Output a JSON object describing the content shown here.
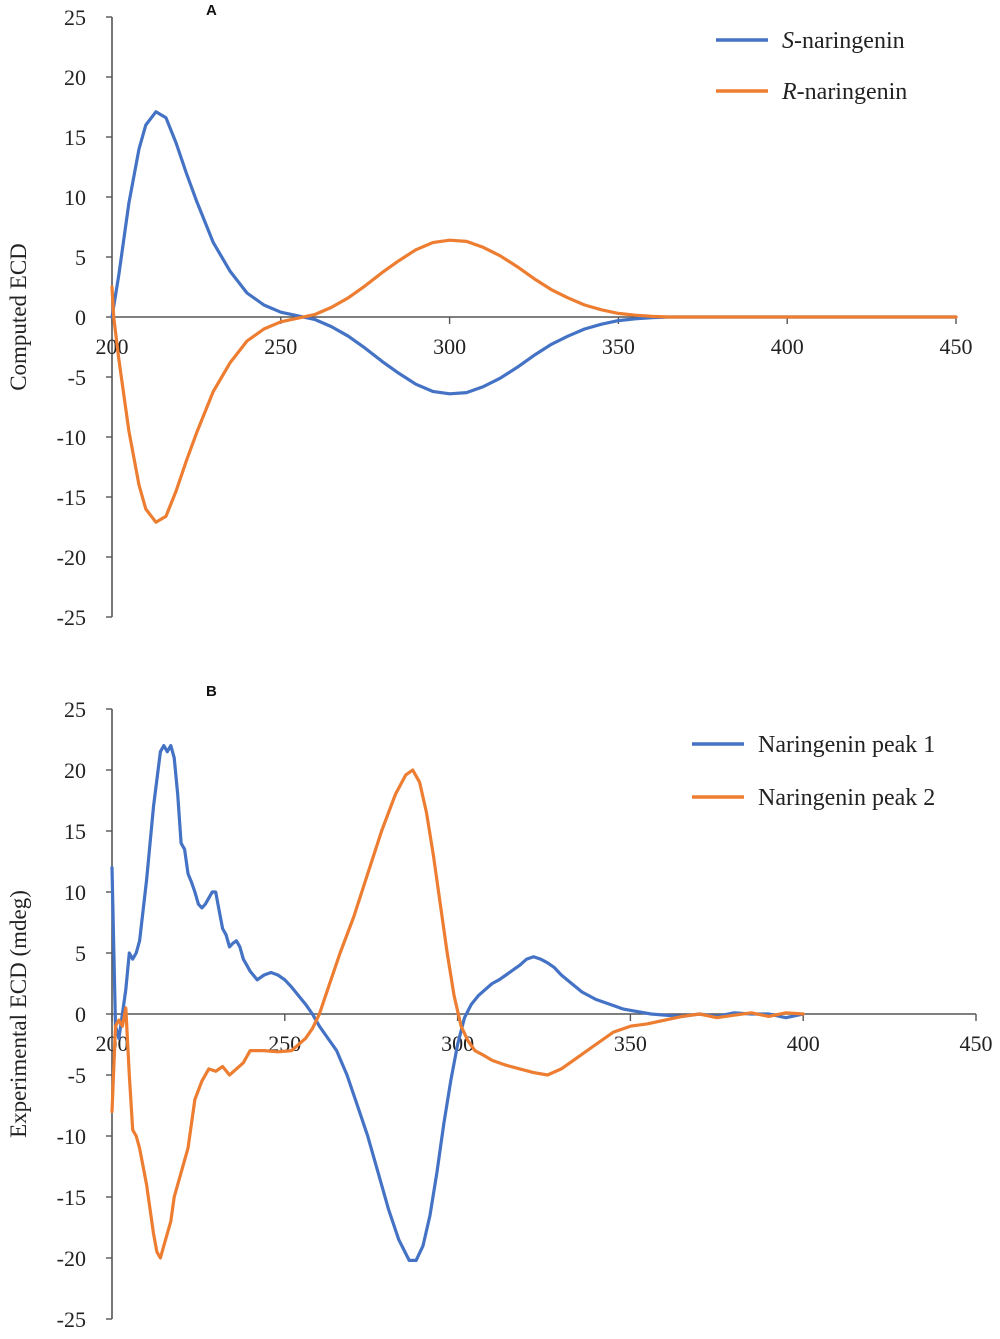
{
  "colors": {
    "blue": "#4472c4",
    "orange": "#ed7d31",
    "axis": "#555555",
    "text": "#222222"
  },
  "chart_data": [
    {
      "type": "line",
      "panel": "A",
      "title": "",
      "xlabel": "",
      "ylabel": "Computed ECD",
      "xlim": [
        200,
        450
      ],
      "ylim": [
        -25,
        25
      ],
      "xticks": [
        200,
        250,
        300,
        350,
        400,
        450
      ],
      "yticks": [
        -25,
        -20,
        -15,
        -10,
        -5,
        0,
        5,
        10,
        15,
        20,
        25
      ],
      "legend_position": "top-right",
      "series": [
        {
          "name": "S-naringenin",
          "name_italic": "S",
          "name_rest": "-naringenin",
          "color": "#4472c4",
          "x": [
            200,
            202,
            205,
            208,
            210,
            213,
            216,
            219,
            222,
            225,
            230,
            235,
            240,
            245,
            250,
            255,
            260,
            265,
            270,
            275,
            280,
            285,
            290,
            295,
            300,
            305,
            310,
            315,
            320,
            325,
            330,
            335,
            340,
            345,
            350,
            355,
            360,
            365,
            370,
            380,
            400,
            420,
            450
          ],
          "y": [
            0,
            3.5,
            9.5,
            14,
            16,
            17.1,
            16.6,
            14.5,
            12,
            9.7,
            6.2,
            3.8,
            2.0,
            1.0,
            0.4,
            0.1,
            -0.2,
            -0.8,
            -1.6,
            -2.6,
            -3.7,
            -4.7,
            -5.6,
            -6.2,
            -6.4,
            -6.3,
            -5.8,
            -5.1,
            -4.2,
            -3.2,
            -2.3,
            -1.6,
            -1.0,
            -0.6,
            -0.3,
            -0.15,
            -0.05,
            0,
            0,
            0,
            0,
            0,
            0
          ]
        },
        {
          "name": "R-naringenin",
          "name_italic": "R",
          "name_rest": "-naringenin",
          "color": "#ed7d31",
          "x": [
            200,
            200.5,
            202,
            205,
            208,
            210,
            213,
            216,
            219,
            222,
            225,
            230,
            235,
            240,
            245,
            250,
            255,
            260,
            265,
            270,
            275,
            280,
            285,
            290,
            295,
            300,
            305,
            310,
            315,
            320,
            325,
            330,
            335,
            340,
            345,
            350,
            355,
            360,
            365,
            370,
            380,
            400,
            420,
            450
          ],
          "y": [
            2.5,
            0,
            -3.5,
            -9.5,
            -14,
            -16,
            -17.1,
            -16.6,
            -14.5,
            -12,
            -9.7,
            -6.2,
            -3.8,
            -2.0,
            -1.0,
            -0.4,
            -0.1,
            0.2,
            0.8,
            1.6,
            2.6,
            3.7,
            4.7,
            5.6,
            6.2,
            6.4,
            6.3,
            5.8,
            5.1,
            4.2,
            3.2,
            2.3,
            1.6,
            1.0,
            0.6,
            0.3,
            0.15,
            0.05,
            0,
            0,
            0,
            0,
            0,
            0
          ]
        }
      ]
    },
    {
      "type": "line",
      "panel": "B",
      "title": "",
      "xlabel": "",
      "ylabel": "Experimental ECD (mdeg)",
      "xlim": [
        200,
        450
      ],
      "ylim": [
        -25,
        25
      ],
      "xticks": [
        200,
        250,
        300,
        350,
        400,
        450
      ],
      "yticks": [
        -25,
        -20,
        -15,
        -10,
        -5,
        0,
        5,
        10,
        15,
        20,
        25
      ],
      "legend_position": "top-right",
      "series": [
        {
          "name": "Naringenin peak 1",
          "color": "#4472c4",
          "x": [
            200,
            201,
            202,
            203,
            204,
            205,
            206,
            207,
            208,
            210,
            212,
            214,
            215,
            216,
            217,
            218,
            219,
            220,
            221,
            222,
            223,
            224,
            225,
            226,
            227,
            228,
            229,
            230,
            231,
            232,
            233,
            234,
            235,
            236,
            237,
            238,
            239,
            240,
            242,
            244,
            246,
            248,
            250,
            252,
            254,
            256,
            258,
            260,
            262,
            265,
            268,
            271,
            274,
            277,
            280,
            283,
            286,
            288,
            290,
            292,
            294,
            296,
            298,
            300,
            302,
            304,
            306,
            308,
            310,
            312,
            314,
            316,
            318,
            320,
            322,
            324,
            326,
            328,
            330,
            333,
            336,
            340,
            344,
            348,
            352,
            356,
            360,
            365,
            370,
            375,
            380,
            385,
            390,
            395,
            400
          ],
          "y": [
            12,
            -1,
            -2,
            0,
            2,
            5,
            4.5,
            5,
            6,
            11,
            17,
            21.5,
            22,
            21.5,
            22,
            21,
            18,
            14,
            13.5,
            11.5,
            10.8,
            10,
            9,
            8.7,
            9,
            9.5,
            10,
            10,
            8.5,
            7,
            6.5,
            5.5,
            5.8,
            6,
            5.5,
            4.5,
            4,
            3.5,
            2.8,
            3.2,
            3.4,
            3.2,
            2.8,
            2.2,
            1.5,
            0.8,
            0,
            -1,
            -1.8,
            -3,
            -5,
            -7.5,
            -10,
            -13,
            -16,
            -18.5,
            -20.2,
            -20.2,
            -19,
            -16.5,
            -13,
            -9,
            -5.5,
            -2.5,
            -0.3,
            0.8,
            1.5,
            2.0,
            2.5,
            2.8,
            3.2,
            3.6,
            4.0,
            4.5,
            4.7,
            4.5,
            4.2,
            3.8,
            3.2,
            2.5,
            1.8,
            1.2,
            0.8,
            0.4,
            0.2,
            0,
            -0.1,
            -0.2,
            0,
            -0.2,
            0.1,
            0,
            0,
            -0.3,
            0
          ]
        },
        {
          "name": "Naringenin peak 2",
          "color": "#ed7d31",
          "x": [
            200,
            201,
            202,
            203,
            204,
            205,
            206,
            207,
            208,
            210,
            212,
            213,
            214,
            215,
            216,
            217,
            218,
            220,
            222,
            224,
            226,
            228,
            230,
            232,
            234,
            236,
            238,
            240,
            244,
            248,
            252,
            256,
            258,
            260,
            263,
            266,
            270,
            274,
            278,
            282,
            285,
            287,
            289,
            291,
            293,
            295,
            297,
            299,
            301,
            303,
            305,
            307,
            310,
            314,
            318,
            322,
            326,
            330,
            335,
            340,
            345,
            350,
            355,
            360,
            365,
            370,
            375,
            380,
            385,
            390,
            395,
            400
          ],
          "y": [
            -8,
            -1,
            -0.5,
            -1,
            0.5,
            -5,
            -9.5,
            -10,
            -11,
            -14,
            -18,
            -19.5,
            -20,
            -19,
            -18,
            -17,
            -15,
            -13,
            -11,
            -7,
            -5.5,
            -4.5,
            -4.7,
            -4.3,
            -5,
            -4.5,
            -4,
            -3,
            -3,
            -3.1,
            -3,
            -2,
            -1.2,
            0,
            2.5,
            5,
            8,
            11.5,
            15,
            18,
            19.6,
            20,
            19,
            16.5,
            13,
            9,
            5,
            1.5,
            -1,
            -2.2,
            -3,
            -3.3,
            -3.8,
            -4.2,
            -4.5,
            -4.8,
            -5,
            -4.5,
            -3.5,
            -2.5,
            -1.5,
            -1,
            -0.8,
            -0.5,
            -0.2,
            0,
            -0.3,
            -0.1,
            0.1,
            -0.2,
            0.1,
            0
          ]
        }
      ]
    }
  ]
}
